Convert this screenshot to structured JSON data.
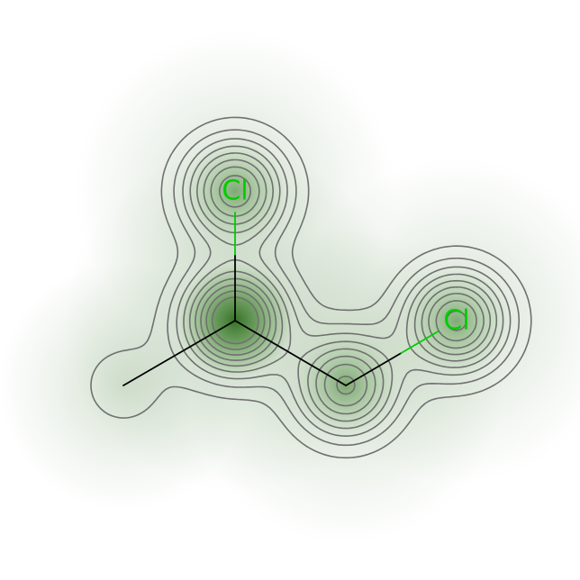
{
  "molecule": {
    "atoms": [
      {
        "id": "cl1",
        "element": "Cl",
        "label": "Cl",
        "labeled": true,
        "weight": 0.8
      },
      {
        "id": "c1",
        "element": "C",
        "label": "",
        "labeled": false,
        "weight": 1.0
      },
      {
        "id": "c2",
        "element": "C",
        "label": "",
        "labeled": false,
        "weight": 0.15
      },
      {
        "id": "c3",
        "element": "C",
        "label": "",
        "labeled": false,
        "weight": 0.75
      },
      {
        "id": "cl2",
        "element": "Cl",
        "label": "Cl",
        "labeled": true,
        "weight": 0.85
      }
    ],
    "bonds": [
      {
        "from": "cl1",
        "to": "c1",
        "order": 1
      },
      {
        "from": "c1",
        "to": "c2",
        "order": 1
      },
      {
        "from": "c1",
        "to": "c3",
        "order": 1
      },
      {
        "from": "c3",
        "to": "cl2",
        "order": 1
      }
    ]
  },
  "colors": {
    "carbon": "#000000",
    "chlorine": "#00cc00",
    "density": "#2e6b1f",
    "contour": "#707070",
    "background": "#ffffff"
  },
  "contour_levels": 9
}
